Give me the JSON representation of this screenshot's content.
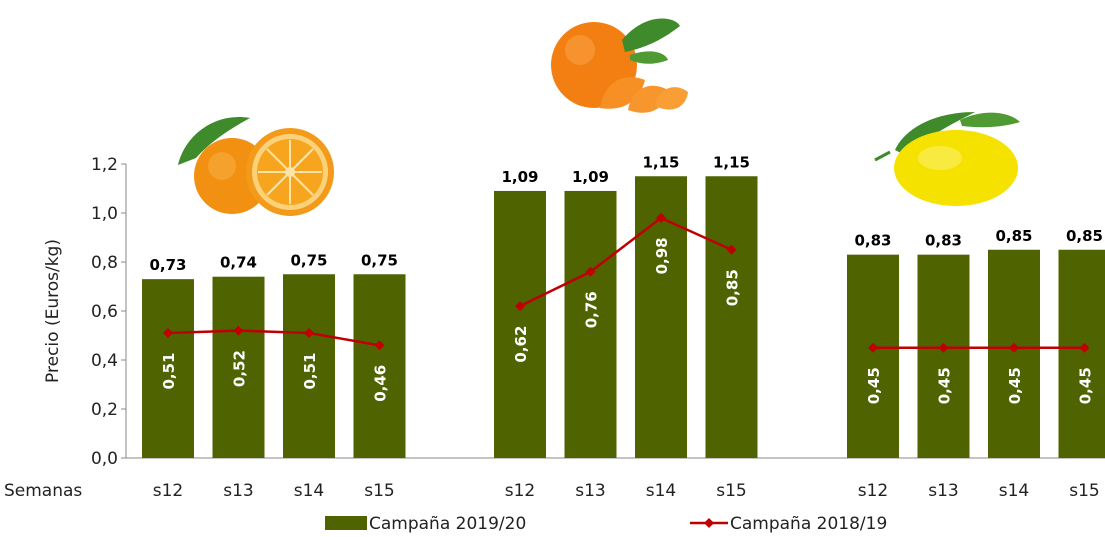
{
  "chart_data": {
    "type": "bar",
    "xlabel": "Semanas",
    "ylabel": "Precio (Euros/kg)",
    "ylim": [
      0,
      1.2
    ],
    "yticks": [
      "0,0",
      "0,2",
      "0,4",
      "0,6",
      "0,8",
      "1,0",
      "1,2"
    ],
    "grid": false,
    "legend_position": "bottom",
    "groups": [
      {
        "image": "orange-icon",
        "categories": [
          "s12",
          "s13",
          "s14",
          "s15"
        ],
        "bar_values": [
          0.73,
          0.74,
          0.75,
          0.75
        ],
        "bar_labels": [
          "0,73",
          "0,74",
          "0,75",
          "0,75"
        ],
        "line_values": [
          0.51,
          0.52,
          0.51,
          0.46
        ],
        "line_labels": [
          "0,51",
          "0,52",
          "0,51",
          "0,46"
        ]
      },
      {
        "image": "mandarin-icon",
        "categories": [
          "s12",
          "s13",
          "s14",
          "s15"
        ],
        "bar_values": [
          1.09,
          1.09,
          1.15,
          1.15
        ],
        "bar_labels": [
          "1,09",
          "1,09",
          "1,15",
          "1,15"
        ],
        "line_values": [
          0.62,
          0.76,
          0.98,
          0.85
        ],
        "line_labels": [
          "0,62",
          "0,76",
          "0,98",
          "0,85"
        ]
      },
      {
        "image": "lemon-icon",
        "categories": [
          "s12",
          "s13",
          "s14",
          "s15"
        ],
        "bar_values": [
          0.83,
          0.83,
          0.85,
          0.85
        ],
        "bar_labels": [
          "0,83",
          "0,83",
          "0,85",
          "0,85"
        ],
        "line_values": [
          0.45,
          0.45,
          0.45,
          0.45
        ],
        "line_labels": [
          "0,45",
          "0,45",
          "0,45",
          "0,45"
        ]
      }
    ],
    "series": [
      {
        "name": "Campaña 2019/20",
        "kind": "bar",
        "color": "#4f6300"
      },
      {
        "name": "Campaña 2018/19",
        "kind": "line",
        "color": "#c00000"
      }
    ]
  }
}
